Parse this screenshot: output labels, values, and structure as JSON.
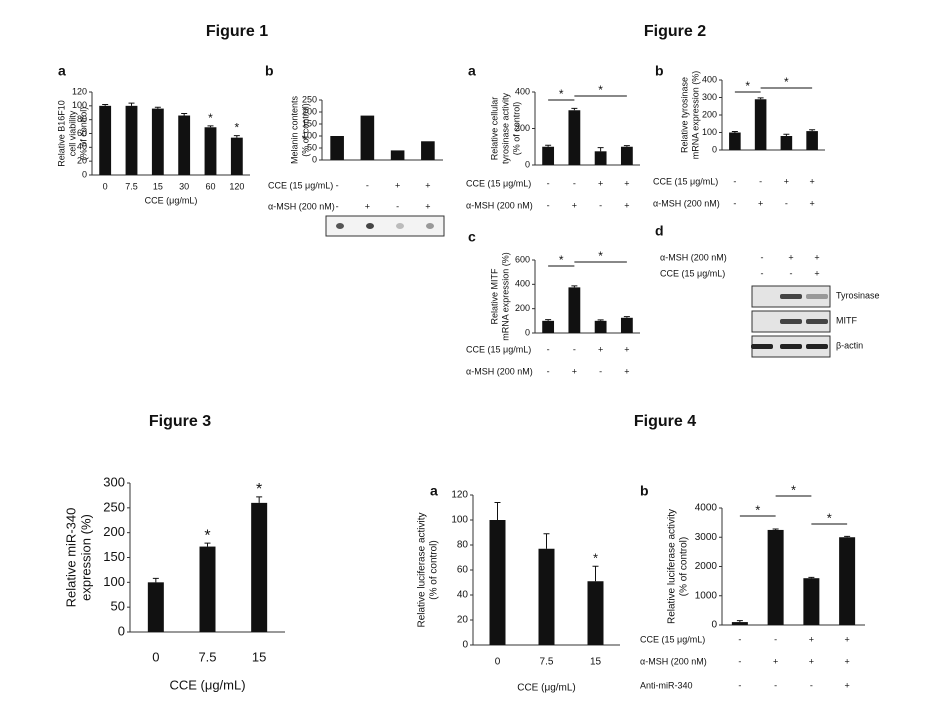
{
  "figure_titles": [
    "Figure 1",
    "Figure 2",
    "Figure 3",
    "Figure 4"
  ],
  "chart_data": [
    {
      "type": "bar",
      "panel": "a",
      "ylabel": [
        "Relative B16F10",
        "cell viability",
        "(% of control)"
      ],
      "xlabel": "CCE (μg/mL)",
      "categories": [
        "0",
        "7.5",
        "15",
        "30",
        "60",
        "120"
      ],
      "values": [
        100,
        100,
        96,
        86,
        69,
        54
      ],
      "errors": [
        2,
        4,
        2,
        3,
        2,
        3
      ],
      "ylim": [
        0,
        120
      ],
      "yticks": [
        0,
        20,
        40,
        60,
        80,
        100,
        120
      ],
      "annotations": [
        "*",
        "*"
      ]
    },
    {
      "type": "bar",
      "panel": "b",
      "ylabel": [
        "Melanin contents",
        "(% of control)"
      ],
      "categories": [
        null,
        null,
        null,
        null
      ],
      "values": [
        100,
        185,
        40,
        78
      ],
      "ylim": [
        0,
        250
      ],
      "yticks": [
        0,
        50,
        100,
        150,
        200,
        250
      ],
      "conditions": [
        {
          "label": "CCE (15 μg/mL)",
          "values": [
            "-",
            "-",
            "+",
            "+"
          ]
        },
        {
          "label": "α-MSH (200 nM)",
          "values": [
            "-",
            "+",
            "-",
            "+"
          ]
        }
      ]
    },
    {
      "type": "bar",
      "panel": "a",
      "ylabel": [
        "Relative cellular",
        "tyrosinase activity",
        "(% of control)"
      ],
      "categories": [
        null,
        null,
        null,
        null
      ],
      "values": [
        100,
        300,
        75,
        100
      ],
      "errors": [
        8,
        10,
        20,
        6
      ],
      "ylim": [
        0,
        400
      ],
      "yticks": [
        0,
        200,
        400
      ],
      "annotations": [
        "*",
        "*"
      ],
      "conditions": [
        {
          "label": "CCE (15 μg/mL)",
          "values": [
            "-",
            "-",
            "+",
            "+"
          ]
        },
        {
          "label": "α-MSH (200 nM)",
          "values": [
            "-",
            "+",
            "-",
            "+"
          ]
        }
      ]
    },
    {
      "type": "bar",
      "panel": "b",
      "ylabel": [
        "Relative tyrosinase",
        "mRNA expression (%)"
      ],
      "categories": [
        null,
        null,
        null,
        null
      ],
      "values": [
        100,
        290,
        80,
        108
      ],
      "errors": [
        6,
        8,
        10,
        8
      ],
      "ylim": [
        0,
        400
      ],
      "yticks": [
        0,
        100,
        200,
        300,
        400
      ],
      "annotations": [
        "*",
        "*"
      ],
      "conditions": [
        {
          "label": "CCE (15 μg/mL)",
          "values": [
            "-",
            "-",
            "+",
            "+"
          ]
        },
        {
          "label": "α-MSH (200 nM)",
          "values": [
            "-",
            "+",
            "-",
            "+"
          ]
        }
      ]
    },
    {
      "type": "bar",
      "panel": "c",
      "ylabel": [
        "Relative MITF",
        "mRNA expression (%)"
      ],
      "categories": [
        null,
        null,
        null,
        null
      ],
      "values": [
        100,
        375,
        100,
        125
      ],
      "errors": [
        10,
        12,
        8,
        10
      ],
      "ylim": [
        0,
        600
      ],
      "yticks": [
        0,
        200,
        400,
        600
      ],
      "annotations": [
        "*",
        "*"
      ],
      "conditions": [
        {
          "label": "CCE (15 μg/mL)",
          "values": [
            "-",
            "-",
            "+",
            "+"
          ]
        },
        {
          "label": "α-MSH (200 nM)",
          "values": [
            "-",
            "+",
            "-",
            "+"
          ]
        }
      ]
    },
    {
      "type": "blot",
      "panel": "d",
      "conditions": [
        {
          "label": "α-MSH (200 nM)",
          "values": [
            "-",
            "+",
            "+"
          ]
        },
        {
          "label": "CCE (15 μg/mL)",
          "values": [
            "-",
            "-",
            "+"
          ]
        }
      ],
      "bands": [
        "Tyrosinase",
        "MITF",
        "β-actin"
      ]
    },
    {
      "type": "bar",
      "ylabel": [
        "Relative miR-340",
        "expression (%)"
      ],
      "xlabel": "CCE (μg/mL)",
      "categories": [
        "0",
        "7.5",
        "15"
      ],
      "values": [
        100,
        172,
        260
      ],
      "errors": [
        8,
        7,
        12
      ],
      "ylim": [
        0,
        300
      ],
      "yticks": [
        0,
        50,
        100,
        150,
        200,
        250,
        300
      ],
      "annotations": [
        "*",
        "*"
      ]
    },
    {
      "type": "bar",
      "panel": "a",
      "ylabel": [
        "Relative luciferase activity",
        "(% of control)"
      ],
      "xlabel": "CCE (μg/mL)",
      "categories": [
        "0",
        "7.5",
        "15"
      ],
      "values": [
        100,
        77,
        51
      ],
      "errors": [
        14,
        12,
        12
      ],
      "ylim": [
        0,
        120
      ],
      "yticks": [
        0,
        20,
        40,
        60,
        80,
        100,
        120
      ],
      "annotations": [
        "*"
      ]
    },
    {
      "type": "bar",
      "panel": "b",
      "ylabel": [
        "Relative luciferase activity",
        "(% of control)"
      ],
      "categories": [
        null,
        null,
        null,
        null
      ],
      "values": [
        100,
        3250,
        1600,
        3000
      ],
      "errors": [
        50,
        30,
        30,
        30
      ],
      "ylim": [
        0,
        4000
      ],
      "yticks": [
        0,
        1000,
        2000,
        3000,
        4000
      ],
      "annotations": [
        "*",
        "*",
        "*"
      ],
      "conditions": [
        {
          "label": "CCE (15 μg/mL)",
          "values": [
            "-",
            "-",
            "+",
            "+"
          ]
        },
        {
          "label": "α-MSH (200 nM)",
          "values": [
            "-",
            "+",
            "+",
            "+"
          ]
        },
        {
          "label": "Anti-miR-340",
          "values": [
            "-",
            "-",
            "-",
            "+"
          ]
        }
      ]
    }
  ]
}
